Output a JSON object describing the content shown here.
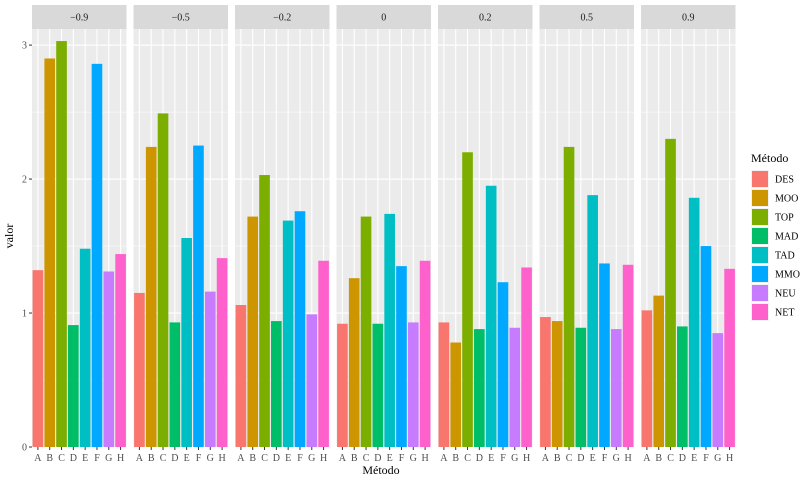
{
  "chart_data": {
    "type": "bar",
    "xlabel": "Método",
    "ylabel": "valor",
    "ylim": [
      0,
      3.12
    ],
    "yticks": [
      0,
      1,
      2,
      3
    ],
    "grid": true,
    "legend_title": "Método",
    "legend_position": "right",
    "categories": [
      "A",
      "B",
      "C",
      "D",
      "E",
      "F",
      "G",
      "H"
    ],
    "legend": [
      {
        "key": "A",
        "label": "DES",
        "color": "#F8766D"
      },
      {
        "key": "B",
        "label": "MOO",
        "color": "#CD9600"
      },
      {
        "key": "C",
        "label": "TOP",
        "color": "#7CAE00"
      },
      {
        "key": "D",
        "label": "MAD",
        "color": "#00BE67"
      },
      {
        "key": "E",
        "label": "TAD",
        "color": "#00BFC4"
      },
      {
        "key": "F",
        "label": "MMO",
        "color": "#00A9FF"
      },
      {
        "key": "G",
        "label": "NEU",
        "color": "#C77CFF"
      },
      {
        "key": "H",
        "label": "NET",
        "color": "#FF61CC"
      }
    ],
    "panels": [
      {
        "label": "−0.9",
        "values": [
          1.32,
          2.9,
          3.03,
          0.91,
          1.48,
          2.86,
          1.31,
          1.44
        ]
      },
      {
        "label": "−0.5",
        "values": [
          1.15,
          2.24,
          2.49,
          0.93,
          1.56,
          2.25,
          1.16,
          1.41
        ]
      },
      {
        "label": "−0.2",
        "values": [
          1.06,
          1.72,
          2.03,
          0.94,
          1.69,
          1.76,
          0.99,
          1.39
        ]
      },
      {
        "label": "0",
        "values": [
          0.92,
          1.26,
          1.72,
          0.92,
          1.74,
          1.35,
          0.93,
          1.39
        ]
      },
      {
        "label": "0.2",
        "values": [
          0.93,
          0.78,
          2.2,
          0.88,
          1.95,
          1.23,
          0.89,
          1.34
        ]
      },
      {
        "label": "0.5",
        "values": [
          0.97,
          0.94,
          2.24,
          0.89,
          1.88,
          1.37,
          0.88,
          1.36
        ]
      },
      {
        "label": "0.9",
        "values": [
          1.02,
          1.13,
          2.3,
          0.9,
          1.86,
          1.5,
          0.85,
          1.33
        ]
      }
    ]
  }
}
